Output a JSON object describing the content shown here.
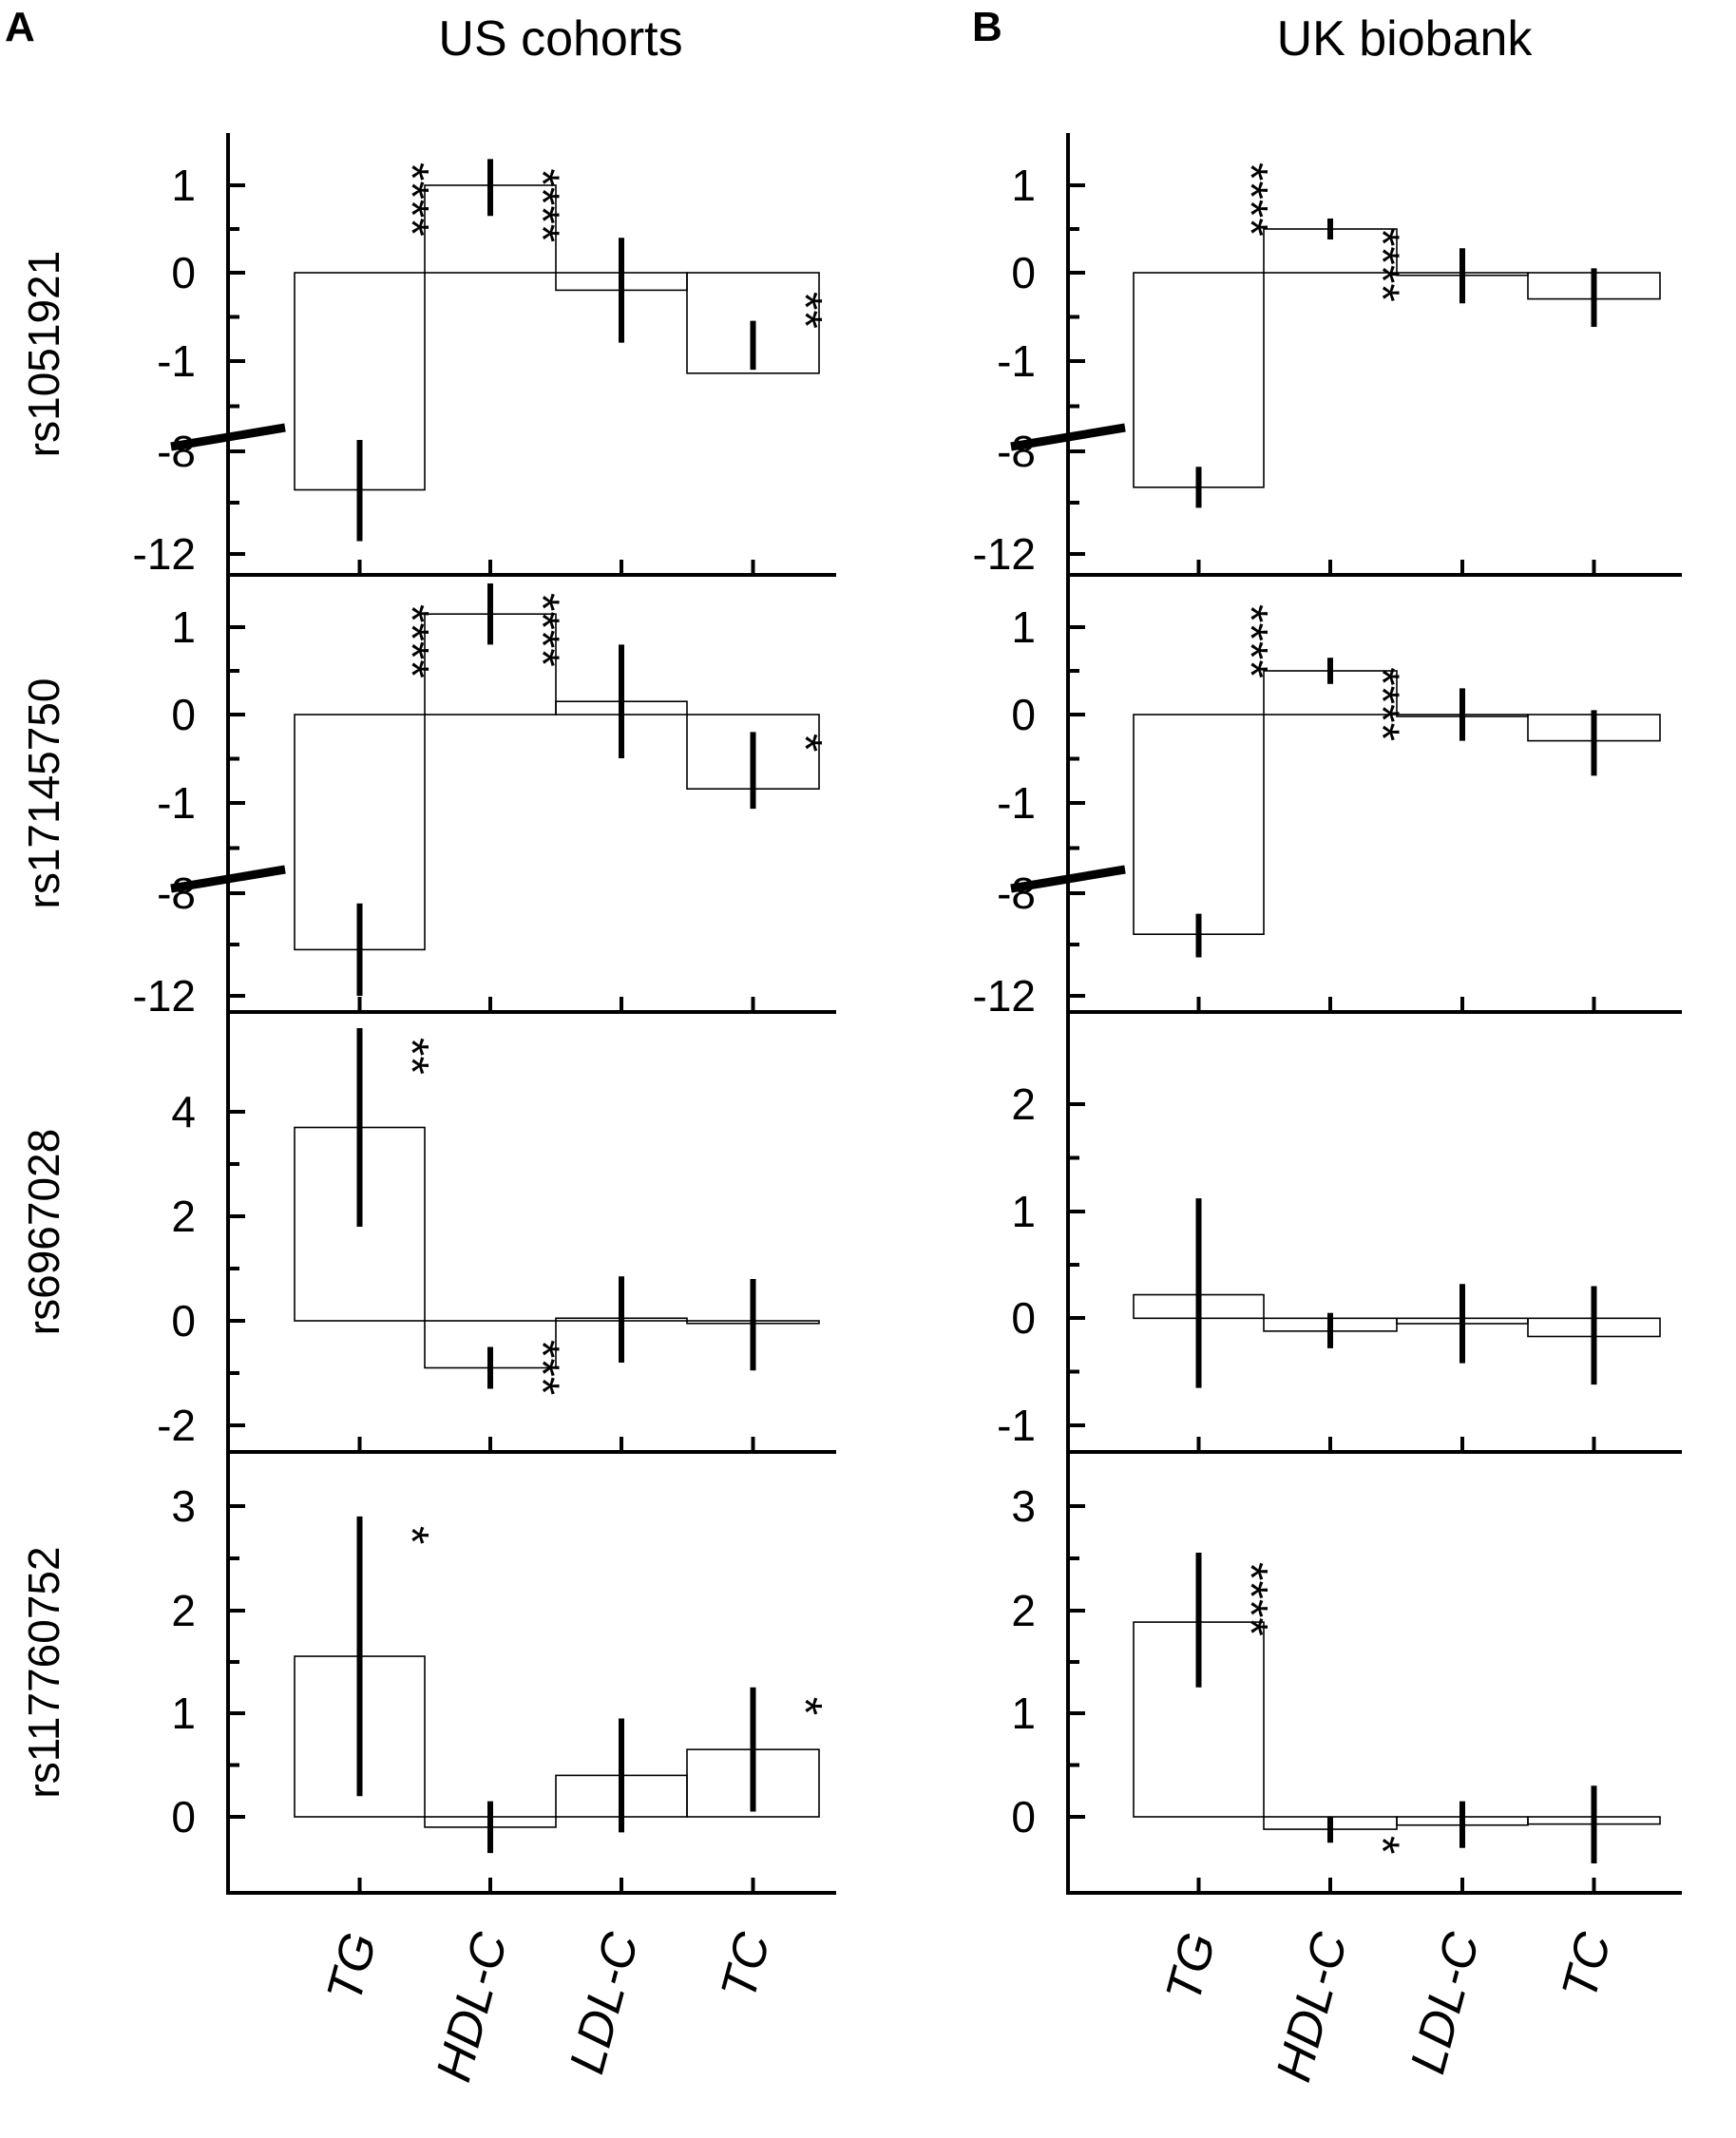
{
  "figure": {
    "panel_letters": [
      "A",
      "B"
    ],
    "panel_titles": [
      "US cohorts",
      "UK biobank"
    ]
  },
  "chart_data": [
    {
      "type": "bar",
      "panel": "A",
      "title": "US cohorts",
      "categories": [
        "TG",
        "HDL-C",
        "LDL-C",
        "TC"
      ],
      "rows": [
        {
          "label": "rs1051921",
          "broken_axis": true,
          "ytick_labels": [
            "1",
            "0",
            "-1",
            "-8",
            "-12"
          ],
          "values": [
            -9.5,
            1.0,
            -0.2,
            -1.15
          ],
          "error_bars": [
            [
              -11.5,
              -7.8
            ],
            [
              0.65,
              1.3
            ],
            [
              -0.8,
              0.4
            ],
            [
              -1.75,
              -0.55
            ]
          ],
          "significance": [
            "****",
            "****",
            "",
            "**"
          ]
        },
        {
          "label": "rs17145750",
          "broken_axis": true,
          "ytick_labels": [
            "1",
            "0",
            "-1",
            "-8",
            "-12"
          ],
          "values": [
            -10.2,
            1.15,
            0.15,
            -0.85
          ],
          "error_bars": [
            [
              -12.0,
              -8.4
            ],
            [
              0.8,
              1.5
            ],
            [
              -0.5,
              0.8
            ],
            [
              -1.5,
              -0.2
            ]
          ],
          "significance": [
            "****",
            "****",
            "",
            "*"
          ]
        },
        {
          "label": "rs6967028",
          "broken_axis": false,
          "ylim": [
            -2,
            5
          ],
          "ytick_labels": [
            "4",
            "2",
            "0",
            "-2"
          ],
          "values": [
            3.7,
            -0.9,
            0.05,
            -0.05
          ],
          "error_bars": [
            [
              1.8,
              5.6
            ],
            [
              -1.3,
              -0.5
            ],
            [
              -0.8,
              0.85
            ],
            [
              -0.95,
              0.8
            ]
          ],
          "significance": [
            "**",
            "***",
            "",
            ""
          ]
        },
        {
          "label": "rs117760752",
          "broken_axis": false,
          "ylim": [
            -0.75,
            3.45
          ],
          "ytick_labels": [
            "3",
            "2",
            "1",
            "0"
          ],
          "values": [
            1.55,
            -0.1,
            0.4,
            0.65
          ],
          "error_bars": [
            [
              0.2,
              2.9
            ],
            [
              -0.35,
              0.15
            ],
            [
              -0.15,
              0.95
            ],
            [
              0.05,
              1.25
            ]
          ],
          "significance": [
            "*",
            "",
            "",
            "*"
          ]
        }
      ]
    },
    {
      "type": "bar",
      "panel": "B",
      "title": "UK biobank",
      "categories": [
        "TG",
        "HDL-C",
        "LDL-C",
        "TC"
      ],
      "rows": [
        {
          "label": "",
          "broken_axis": true,
          "ytick_labels": [
            "1",
            "0",
            "-1",
            "-8",
            "-12"
          ],
          "values": [
            -9.4,
            0.5,
            -0.03,
            -0.3
          ],
          "error_bars": [
            [
              -10.2,
              -8.6
            ],
            [
              0.38,
              0.62
            ],
            [
              -0.35,
              0.28
            ],
            [
              -0.62,
              0.05
            ]
          ],
          "significance": [
            "****",
            "****",
            "",
            ""
          ]
        },
        {
          "label": "",
          "broken_axis": true,
          "ytick_labels": [
            "1",
            "0",
            "-1",
            "-8",
            "-12"
          ],
          "values": [
            -9.6,
            0.5,
            0.0,
            -0.3
          ],
          "error_bars": [
            [
              -10.5,
              -8.8
            ],
            [
              0.35,
              0.65
            ],
            [
              -0.3,
              0.3
            ],
            [
              -0.7,
              0.05
            ]
          ],
          "significance": [
            "****",
            "****",
            "",
            ""
          ]
        },
        {
          "label": "",
          "broken_axis": false,
          "ylim": [
            -1.5,
            2.8
          ],
          "ytick_labels": [
            "2",
            "1",
            "0",
            "-1"
          ],
          "values": [
            0.22,
            -0.12,
            -0.05,
            -0.17
          ],
          "error_bars": [
            [
              -0.65,
              1.12
            ],
            [
              -0.28,
              0.05
            ],
            [
              -0.42,
              0.32
            ],
            [
              -0.62,
              0.3
            ]
          ],
          "significance": [
            "",
            "",
            "",
            ""
          ]
        },
        {
          "label": "",
          "broken_axis": false,
          "ylim": [
            -0.75,
            3.45
          ],
          "ytick_labels": [
            "3",
            "2",
            "1",
            "0"
          ],
          "values": [
            1.88,
            -0.12,
            -0.08,
            -0.07
          ],
          "error_bars": [
            [
              1.25,
              2.55
            ],
            [
              -0.25,
              0.0
            ],
            [
              -0.3,
              0.15
            ],
            [
              -0.45,
              0.3
            ]
          ],
          "significance": [
            "****",
            "*",
            "",
            ""
          ]
        }
      ]
    }
  ]
}
